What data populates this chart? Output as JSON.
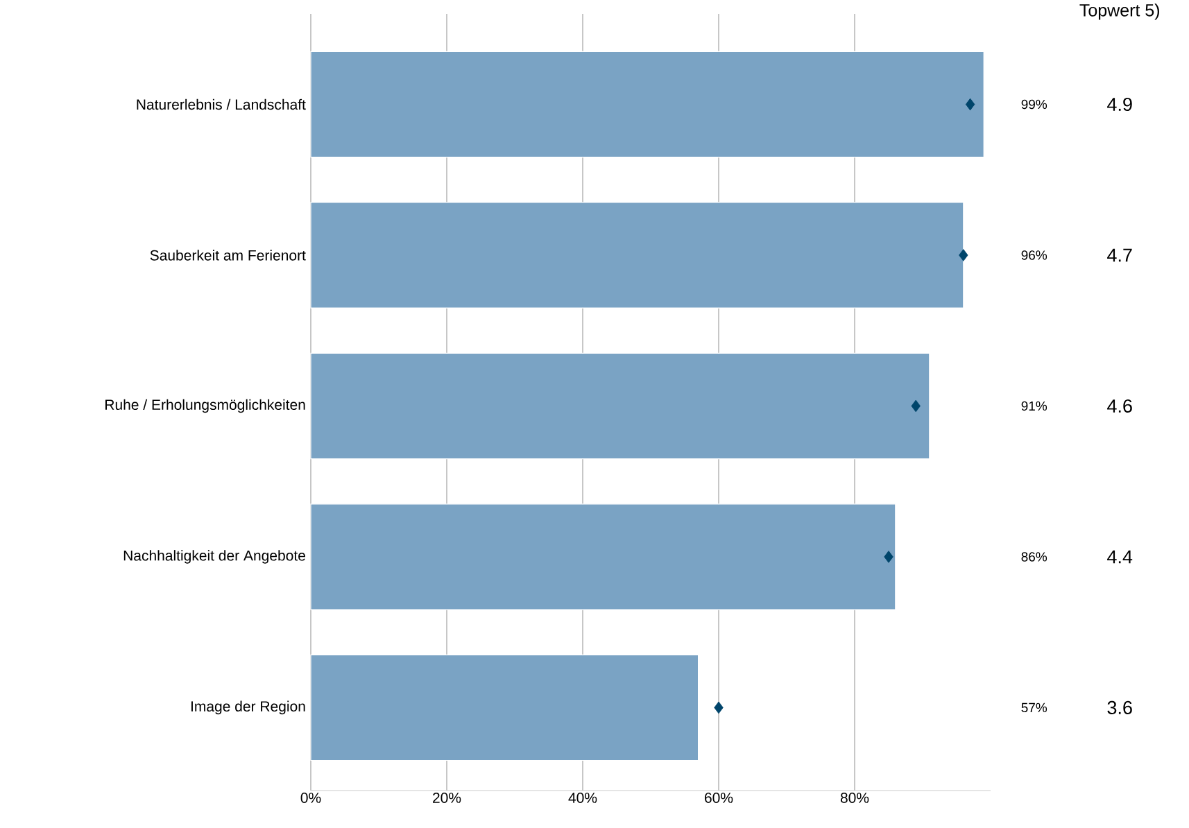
{
  "chart_data": {
    "type": "bar",
    "orientation": "horizontal",
    "categories": [
      "Naturerlebnis / Landschaft",
      "Sauberkeit am Ferienort",
      "Ruhe / Erholungsmöglichkeiten",
      "Nachhaltigkeit der Angebote",
      "Image der Region"
    ],
    "series": [
      {
        "color": "#7aa3c4",
        "values": [
          99,
          96,
          91,
          86,
          57
        ],
        "value_labels": [
          "99%",
          "96%",
          "91%",
          "86%",
          "57%"
        ]
      },
      {
        "type": "scatter",
        "color": "#00456b",
        "marker": "diamond",
        "values": [
          97,
          96,
          89,
          85,
          60
        ]
      }
    ],
    "xlim": [
      0,
      100
    ],
    "xticks": [
      {
        "value": 0,
        "label": "0%"
      },
      {
        "value": 20,
        "label": "20%"
      },
      {
        "value": 40,
        "label": "40%"
      },
      {
        "value": 60,
        "label": "60%"
      },
      {
        "value": 80,
        "label": "80%"
      }
    ],
    "grid": "x",
    "annotations": [
      "Topwert 5)",
      "4.9",
      "4.7",
      "4.6",
      "4.4",
      "3.6"
    ]
  }
}
